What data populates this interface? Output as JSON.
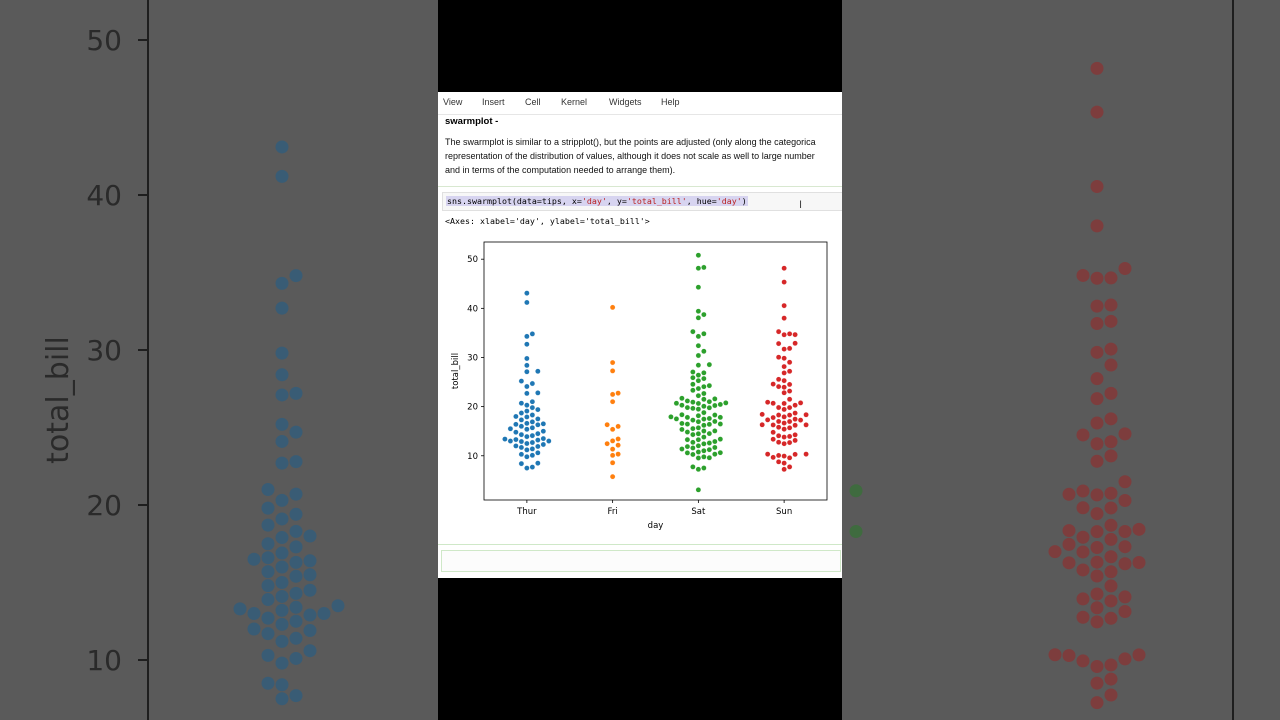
{
  "menubar": {
    "items": [
      "View",
      "Insert",
      "Cell",
      "Kernel",
      "Widgets",
      "Help"
    ]
  },
  "markdown": {
    "title": "swarmplot -",
    "lines": [
      "The swarmplot is similar to a stripplot(), but the points are adjusted (only along the categorica",
      "representation of the distribution of values, although it does not scale as well to large number",
      "and in terms of the computation needed to arrange them)."
    ]
  },
  "code_cell": {
    "source_parts": [
      "sns.swarmplot(data=tips, x=",
      "'day'",
      ", y=",
      "'total_bill'",
      ", hue=",
      "'day'",
      ")"
    ]
  },
  "output": {
    "text": "<Axes: xlabel='day', ylabel='total_bill'>"
  },
  "colors": {
    "Thur": "#1f77b4",
    "Fri": "#ff7f0e",
    "Sat": "#2ca02c",
    "Sun": "#d62728"
  },
  "chart_data": {
    "type": "scatter",
    "subtype": "swarm",
    "xlabel": "day",
    "ylabel": "total_bill",
    "categories": [
      "Thur",
      "Fri",
      "Sat",
      "Sun"
    ],
    "yticks": [
      10,
      20,
      30,
      40,
      50
    ],
    "ylim": [
      1,
      53.5
    ],
    "grid": false,
    "series": [
      {
        "category": "Thur",
        "values": [
          43.1,
          41.2,
          34.8,
          34.3,
          32.7,
          29.8,
          28.4,
          27.2,
          27.1,
          25.2,
          24.1,
          24.7,
          22.7,
          22.8,
          21.0,
          20.7,
          20.3,
          19.8,
          19.4,
          19.1,
          18.7,
          18.3,
          18.0,
          17.9,
          17.5,
          17.3,
          16.9,
          16.6,
          16.5,
          16.4,
          16.3,
          16.0,
          15.7,
          15.5,
          15.4,
          15.0,
          14.8,
          14.5,
          14.3,
          14.1,
          13.9,
          13.5,
          13.4,
          13.3,
          13.2,
          13.0,
          13.0,
          12.9,
          12.7,
          12.5,
          12.3,
          12.0,
          11.9,
          11.7,
          11.4,
          11.2,
          10.6,
          10.3,
          10.1,
          9.8,
          8.5,
          8.4,
          7.7,
          7.5
        ]
      },
      {
        "category": "Fri",
        "values": [
          40.2,
          28.97,
          27.28,
          22.75,
          22.49,
          21.01,
          16.32,
          15.98,
          15.38,
          13.42,
          13.03,
          12.46,
          12.16,
          11.35,
          10.34,
          10.09,
          8.58,
          5.75
        ]
      },
      {
        "category": "Sat",
        "values": [
          50.81,
          48.33,
          48.17,
          44.3,
          39.42,
          38.73,
          38.07,
          35.26,
          34.83,
          34.3,
          32.4,
          31.27,
          30.4,
          28.55,
          28.44,
          27.05,
          26.88,
          26.41,
          25.89,
          25.71,
          25.28,
          24.55,
          24.27,
          24.06,
          23.68,
          23.33,
          22.67,
          22.23,
          21.7,
          21.58,
          21.5,
          21.16,
          21.01,
          20.92,
          20.76,
          20.69,
          20.65,
          20.45,
          20.29,
          20.23,
          20.08,
          19.81,
          19.77,
          19.65,
          19.49,
          18.78,
          18.35,
          18.29,
          18.15,
          17.92,
          17.82,
          17.81,
          17.59,
          17.51,
          17.47,
          17.26,
          16.99,
          16.93,
          16.58,
          16.47,
          16.45,
          16.4,
          16.21,
          15.69,
          15.53,
          15.36,
          15.06,
          15.04,
          14.83,
          14.52,
          14.48,
          14.31,
          13.81,
          13.39,
          13.28,
          13.27,
          12.9,
          12.74,
          12.6,
          12.43,
          12.03,
          11.87,
          11.69,
          11.59,
          11.38,
          11.24,
          11.02,
          10.77,
          10.63,
          10.59,
          10.33,
          10.27,
          9.78,
          9.6,
          9.55,
          7.74,
          7.25,
          7.51,
          3.07
        ]
      },
      {
        "category": "Sun",
        "values": [
          48.17,
          45.35,
          40.55,
          38.01,
          35.26,
          34.81,
          34.63,
          34.65,
          32.9,
          32.83,
          31.85,
          31.71,
          30.06,
          29.85,
          29.03,
          28.15,
          27.2,
          26.86,
          25.56,
          25.29,
          24.59,
          24.52,
          24.08,
          23.95,
          23.17,
          22.82,
          21.5,
          20.9,
          20.76,
          20.69,
          20.65,
          20.29,
          19.82,
          19.81,
          19.44,
          18.69,
          18.43,
          18.35,
          18.29,
          18.28,
          17.92,
          17.78,
          17.46,
          17.31,
          17.26,
          16.99,
          16.97,
          16.66,
          16.31,
          16.29,
          16.27,
          16.21,
          15.81,
          15.69,
          15.42,
          14.78,
          14.26,
          14.07,
          13.94,
          13.81,
          13.37,
          13.13,
          12.76,
          12.69,
          12.46,
          10.33,
          10.34,
          10.29,
          10.07,
          9.94,
          9.68,
          9.58,
          8.77,
          8.51,
          7.25,
          7.74
        ]
      }
    ]
  }
}
